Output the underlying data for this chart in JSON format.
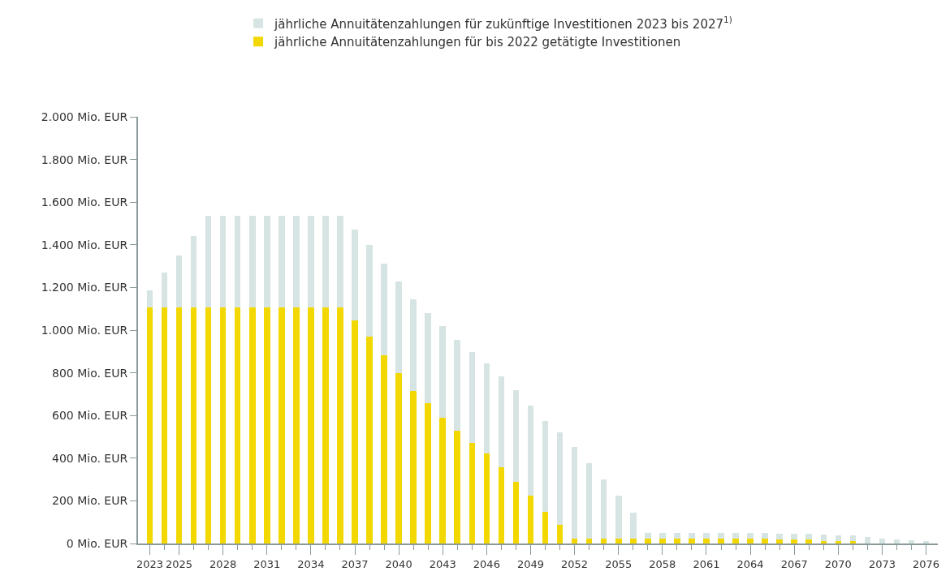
{
  "chart_data": {
    "type": "bar",
    "stacked": true,
    "legend": "top",
    "categories": [
      "2023",
      null,
      "2025",
      null,
      null,
      "2028",
      null,
      null,
      "2031",
      null,
      null,
      "2034",
      null,
      null,
      "2037",
      null,
      null,
      "2040",
      null,
      null,
      "2043",
      null,
      null,
      "2046",
      null,
      null,
      "2049",
      null,
      null,
      "2052",
      null,
      null,
      "2055",
      null,
      null,
      "2058",
      null,
      null,
      "2061",
      null,
      null,
      "2064",
      null,
      null,
      "2067",
      null,
      null,
      "2070",
      null,
      null,
      "2073",
      null,
      null,
      "2076"
    ],
    "series": [
      {
        "name": "jährliche Annuitätenzahlungen für bis 2022 getätigte Investitionen",
        "color": "#f2d700",
        "values": [
          1105,
          1105,
          1105,
          1105,
          1105,
          1105,
          1105,
          1105,
          1105,
          1105,
          1105,
          1105,
          1105,
          1105,
          1044,
          971,
          883,
          799,
          714,
          656,
          590,
          527,
          472,
          421,
          359,
          289,
          223,
          150,
          88,
          22,
          22,
          22,
          22,
          22,
          22,
          22,
          22,
          22,
          22,
          22,
          22,
          22,
          22,
          18,
          18,
          18,
          11,
          11,
          11,
          0,
          0,
          0,
          0,
          0
        ]
      },
      {
        "name": "jährliche Annuitätenzahlungen für zukünftige Investitionen 2023 bis 2027$^{1)}$",
        "color": "#d6e4e3",
        "values": [
          82,
          166,
          243,
          335,
          430,
          430,
          430,
          430,
          430,
          430,
          430,
          430,
          430,
          430,
          429,
          428,
          428,
          428,
          429,
          425,
          428,
          429,
          425,
          425,
          425,
          429,
          425,
          425,
          432,
          429,
          355,
          278,
          201,
          121,
          29,
          29,
          29,
          29,
          29,
          29,
          29,
          29,
          29,
          26,
          26,
          26,
          29,
          26,
          26,
          29,
          22,
          18,
          15,
          11
        ]
      }
    ],
    "ylim": [
      0,
      2000
    ],
    "yticks": [
      {
        "value": 0,
        "label": "0 Mio. EUR"
      },
      {
        "value": 200,
        "label": "200 Mio. EUR"
      },
      {
        "value": 400,
        "label": "400 Mio. EUR"
      },
      {
        "value": 600,
        "label": "600 Mio. EUR"
      },
      {
        "value": 800,
        "label": "800 Mio. EUR"
      },
      {
        "value": 1000,
        "label": "1.000 Mio. EUR"
      },
      {
        "value": 1200,
        "label": "1.200 Mio. EUR"
      },
      {
        "value": 1400,
        "label": "1.400 Mio. EUR"
      },
      {
        "value": 1600,
        "label": "1.600 Mio. EUR"
      },
      {
        "value": 1800,
        "label": "1.800 Mio. EUR"
      },
      {
        "value": 2000,
        "label": "2.000 Mio. EUR"
      }
    ]
  }
}
